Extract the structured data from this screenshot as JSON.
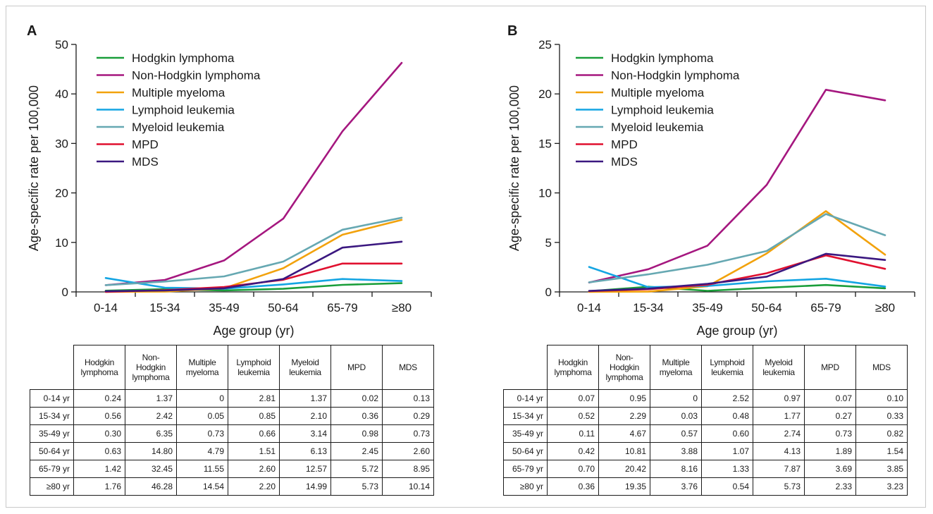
{
  "colors": {
    "Hodgkin lymphoma": "#1a9e3a",
    "Non-Hodgkin lymphoma": "#a5177f",
    "Multiple myeloma": "#f2a20c",
    "Lymphoid leukemia": "#14a5e3",
    "Myeloid leukemia": "#66a8b2",
    "MPD": "#e0102f",
    "MDS": "#3b1880"
  },
  "chart_data": [
    {
      "panel_label": "A",
      "type": "line",
      "xlabel": "Age group (yr)",
      "ylabel": "Age-specific rate per 100,000",
      "ylim": [
        0,
        50
      ],
      "yticks": [
        0,
        10,
        20,
        30,
        40,
        50
      ],
      "categories": [
        "0-14",
        "15-34",
        "35-49",
        "50-64",
        "65-79",
        "≥80"
      ],
      "legend_position": "top-left",
      "grid": false,
      "series": [
        {
          "name": "Hodgkin lymphoma",
          "values": [
            0.24,
            0.56,
            0.3,
            0.63,
            1.42,
            1.76
          ]
        },
        {
          "name": "Non-Hodgkin lymphoma",
          "values": [
            1.37,
            2.42,
            6.35,
            14.8,
            32.45,
            46.28
          ]
        },
        {
          "name": "Multiple myeloma",
          "values": [
            0,
            0.05,
            0.73,
            4.79,
            11.55,
            14.54
          ]
        },
        {
          "name": "Lymphoid leukemia",
          "values": [
            2.81,
            0.85,
            0.66,
            1.51,
            2.6,
            2.2
          ]
        },
        {
          "name": "Myeloid leukemia",
          "values": [
            1.37,
            2.1,
            3.14,
            6.13,
            12.57,
            14.99
          ]
        },
        {
          "name": "MPD",
          "values": [
            0.02,
            0.36,
            0.98,
            2.45,
            5.72,
            5.73
          ]
        },
        {
          "name": "MDS",
          "values": [
            0.13,
            0.29,
            0.73,
            2.6,
            8.95,
            10.14
          ]
        }
      ],
      "table": {
        "columns": [
          "Hodgkin lymphoma",
          "Non-Hodgkin lymphoma",
          "Multiple myeloma",
          "Lymphoid leukemia",
          "Myeloid leukemia",
          "MPD",
          "MDS"
        ],
        "rows": [
          {
            "label": "0-14 yr",
            "cells": [
              "0.24",
              "1.37",
              "0",
              "2.81",
              "1.37",
              "0.02",
              "0.13"
            ]
          },
          {
            "label": "15-34 yr",
            "cells": [
              "0.56",
              "2.42",
              "0.05",
              "0.85",
              "2.10",
              "0.36",
              "0.29"
            ]
          },
          {
            "label": "35-49 yr",
            "cells": [
              "0.30",
              "6.35",
              "0.73",
              "0.66",
              "3.14",
              "0.98",
              "0.73"
            ]
          },
          {
            "label": "50-64 yr",
            "cells": [
              "0.63",
              "14.80",
              "4.79",
              "1.51",
              "6.13",
              "2.45",
              "2.60"
            ]
          },
          {
            "label": "65-79 yr",
            "cells": [
              "1.42",
              "32.45",
              "11.55",
              "2.60",
              "12.57",
              "5.72",
              "8.95"
            ]
          },
          {
            "label": "≥80 yr",
            "cells": [
              "1.76",
              "46.28",
              "14.54",
              "2.20",
              "14.99",
              "5.73",
              "10.14"
            ]
          }
        ]
      }
    },
    {
      "panel_label": "B",
      "type": "line",
      "xlabel": "Age group (yr)",
      "ylabel": "Age-specific rate per 100,000",
      "ylim": [
        0,
        25
      ],
      "yticks": [
        0,
        5,
        10,
        15,
        20,
        25
      ],
      "categories": [
        "0-14",
        "15-34",
        "35-49",
        "50-64",
        "65-79",
        "≥80"
      ],
      "legend_position": "top-left",
      "grid": false,
      "series": [
        {
          "name": "Hodgkin lymphoma",
          "values": [
            0.07,
            0.52,
            0.11,
            0.42,
            0.7,
            0.36
          ]
        },
        {
          "name": "Non-Hodgkin lymphoma",
          "values": [
            0.95,
            2.29,
            4.67,
            10.81,
            20.42,
            19.35
          ]
        },
        {
          "name": "Multiple myeloma",
          "values": [
            0,
            0.03,
            0.57,
            3.88,
            8.16,
            3.76
          ]
        },
        {
          "name": "Lymphoid leukemia",
          "values": [
            2.52,
            0.48,
            0.6,
            1.07,
            1.33,
            0.54
          ]
        },
        {
          "name": "Myeloid leukemia",
          "values": [
            0.97,
            1.77,
            2.74,
            4.13,
            7.87,
            5.73
          ]
        },
        {
          "name": "MPD",
          "values": [
            0.07,
            0.27,
            0.73,
            1.89,
            3.69,
            2.33
          ]
        },
        {
          "name": "MDS",
          "values": [
            0.1,
            0.33,
            0.82,
            1.54,
            3.85,
            3.23
          ]
        }
      ],
      "table": {
        "columns": [
          "Hodgkin lymphoma",
          "Non-Hodgkin lymphoma",
          "Multiple myeloma",
          "Lymphoid leukemia",
          "Myeloid leukemia",
          "MPD",
          "MDS"
        ],
        "rows": [
          {
            "label": "0-14 yr",
            "cells": [
              "0.07",
              "0.95",
              "0",
              "2.52",
              "0.97",
              "0.07",
              "0.10"
            ]
          },
          {
            "label": "15-34 yr",
            "cells": [
              "0.52",
              "2.29",
              "0.03",
              "0.48",
              "1.77",
              "0.27",
              "0.33"
            ]
          },
          {
            "label": "35-49 yr",
            "cells": [
              "0.11",
              "4.67",
              "0.57",
              "0.60",
              "2.74",
              "0.73",
              "0.82"
            ]
          },
          {
            "label": "50-64 yr",
            "cells": [
              "0.42",
              "10.81",
              "3.88",
              "1.07",
              "4.13",
              "1.89",
              "1.54"
            ]
          },
          {
            "label": "65-79 yr",
            "cells": [
              "0.70",
              "20.42",
              "8.16",
              "1.33",
              "7.87",
              "3.69",
              "3.85"
            ]
          },
          {
            "label": "≥80 yr",
            "cells": [
              "0.36",
              "19.35",
              "3.76",
              "0.54",
              "5.73",
              "2.33",
              "3.23"
            ]
          }
        ]
      }
    }
  ]
}
